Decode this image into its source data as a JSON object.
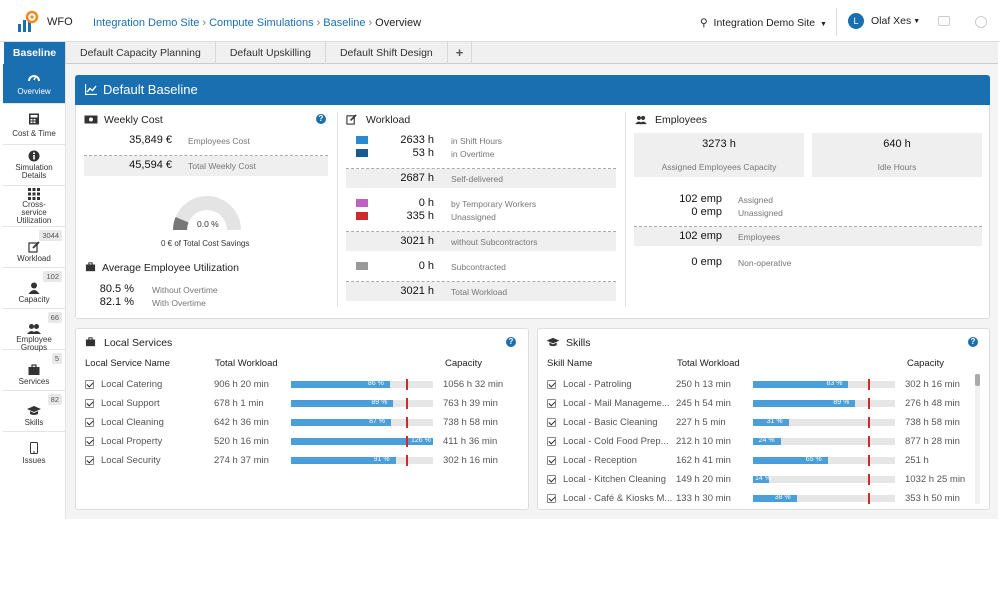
{
  "app": {
    "name": "WFO"
  },
  "breadcrumb": {
    "items": [
      "Integration Demo Site",
      "Compute Simulations",
      "Baseline"
    ],
    "current": "Overview"
  },
  "site_selector": {
    "label": "Integration Demo Site"
  },
  "user": {
    "initial": "L",
    "name": "Olaf Xes"
  },
  "tabs": [
    {
      "label": "Baseline"
    },
    {
      "label": "Default Capacity Planning"
    },
    {
      "label": "Default Upskilling"
    },
    {
      "label": "Default Shift Design"
    },
    {
      "label": "+"
    }
  ],
  "sidebar": [
    {
      "label": "Overview",
      "icon": "gauge-icon"
    },
    {
      "label": "Cost & Time",
      "icon": "calculator-icon"
    },
    {
      "label": "Simulation Details",
      "icon": "info-icon"
    },
    {
      "label": "Cross-service Utilization",
      "icon": "grid-icon"
    },
    {
      "label": "Workload",
      "icon": "edit-icon",
      "badge": "3044"
    },
    {
      "label": "Capacity",
      "icon": "user-icon",
      "badge": "102"
    },
    {
      "label": "Employee Groups",
      "icon": "users-icon",
      "badge": "66"
    },
    {
      "label": "Services",
      "icon": "briefcase-icon",
      "badge": "5"
    },
    {
      "label": "Skills",
      "icon": "graduation-cap-icon",
      "badge": "82"
    },
    {
      "label": "Issues",
      "icon": "mobile-icon"
    }
  ],
  "header": {
    "title": "Default Baseline"
  },
  "weekly_cost": {
    "title": "Weekly Cost",
    "employees_cost": "35,849 €",
    "employees_cost_label": "Employees Cost",
    "total_cost": "45,594 €",
    "total_cost_label": "Total Weekly Cost",
    "gauge_value": "0.0 %",
    "gauge_fraction": 0.1,
    "savings_label": "0 € of Total Cost Savings"
  },
  "utilization": {
    "title": "Average Employee Utilization",
    "without_overtime": "80.5 %",
    "without_overtime_label": "Without Overtime",
    "with_overtime": "82.1 %",
    "with_overtime_label": "With Overtime"
  },
  "workload": {
    "title": "Workload",
    "shift_hours": "2633 h",
    "shift_hours_label": "in Shift Hours",
    "overtime": "53 h",
    "overtime_label": "in Overtime",
    "self_delivered": "2687 h",
    "self_delivered_label": "Self-delivered",
    "temp_workers": "0 h",
    "temp_workers_label": "by Temporary Workers",
    "unassigned": "335 h",
    "unassigned_label": "Unassigned",
    "without_sub": "3021 h",
    "without_sub_label": "without Subcontractors",
    "subcontracted": "0 h",
    "subcontracted_label": "Subcontracted",
    "total": "3021 h",
    "total_label": "Total Workload",
    "colors": {
      "shift": "#2a8ad0",
      "overtime": "#1a5a90",
      "temp": "#c060c0",
      "unassigned": "#cc2b2b",
      "sub": "#999999"
    }
  },
  "employees": {
    "title": "Employees",
    "assigned_capacity": "3273 h",
    "assigned_capacity_label": "Assigned Employees Capacity",
    "idle_hours": "640 h",
    "idle_hours_label": "Idle Hours",
    "assigned": "102 emp",
    "assigned_label": "Assigned",
    "unassigned": "0 emp",
    "unassigned_label": "Unassigned",
    "total": "102 emp",
    "total_label": "Employees",
    "non_operative": "0 emp",
    "non_operative_label": "Non-operative"
  },
  "local_services": {
    "title": "Local Services",
    "columns": [
      "Local Service Name",
      "Total Workload",
      "Capacity"
    ],
    "rows": [
      {
        "name": "Local Catering",
        "workload": "906 h 20 min",
        "pct": 86,
        "pct_label": "86 %",
        "capacity": "1056 h 32 min"
      },
      {
        "name": "Local Support",
        "workload": "678 h 1 min",
        "pct": 89,
        "pct_label": "89 %",
        "capacity": "763 h 39 min"
      },
      {
        "name": "Local Cleaning",
        "workload": "642 h 36 min",
        "pct": 87,
        "pct_label": "87 %",
        "capacity": "738 h 58 min"
      },
      {
        "name": "Local Property",
        "workload": "520 h 16 min",
        "pct": 126,
        "pct_label": "126 %",
        "capacity": "411 h 36 min"
      },
      {
        "name": "Local Security",
        "workload": "274 h 37 min",
        "pct": 91,
        "pct_label": "91 %",
        "capacity": "302 h 16 min"
      }
    ]
  },
  "skills": {
    "title": "Skills",
    "columns": [
      "Skill Name",
      "Total Workload",
      "Capacity"
    ],
    "rows": [
      {
        "name": "Local - Patroling",
        "workload": "250 h 13 min",
        "pct": 83,
        "pct_label": "83 %",
        "capacity": "302 h 16 min"
      },
      {
        "name": "Local - Mail Manageme...",
        "workload": "245 h 54 min",
        "pct": 89,
        "pct_label": "89 %",
        "capacity": "276 h 48 min"
      },
      {
        "name": "Local - Basic Cleaning",
        "workload": "227 h 5 min",
        "pct": 31,
        "pct_label": "31 %",
        "capacity": "738 h 58 min"
      },
      {
        "name": "Local - Cold Food Prep...",
        "workload": "212 h 10 min",
        "pct": 24,
        "pct_label": "24 %",
        "capacity": "877 h 28 min"
      },
      {
        "name": "Local - Reception",
        "workload": "162 h 41 min",
        "pct": 65,
        "pct_label": "65 %",
        "capacity": "251 h"
      },
      {
        "name": "Local - Kitchen Cleaning",
        "workload": "149 h 20 min",
        "pct": 14,
        "pct_label": "14 %",
        "capacity": "1032 h 25 min"
      },
      {
        "name": "Local - Café & Kiosks M...",
        "workload": "133 h 30 min",
        "pct": 38,
        "pct_label": "38 %",
        "capacity": "353 h 50 min"
      }
    ]
  }
}
